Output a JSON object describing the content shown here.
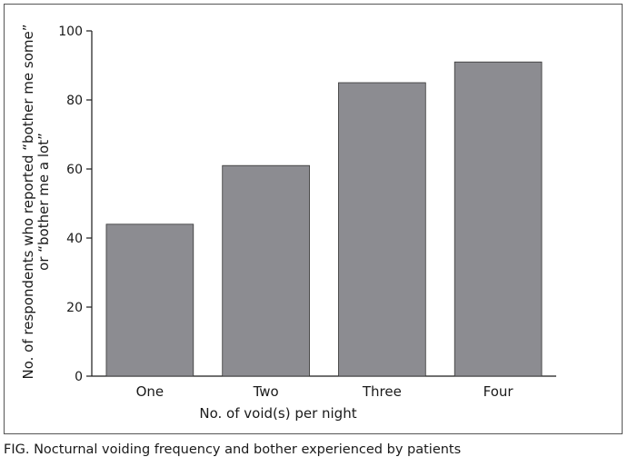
{
  "chart_data": {
    "type": "bar",
    "categories": [
      "One",
      "Two",
      "Three",
      "Four"
    ],
    "values": [
      44,
      61,
      85,
      91
    ],
    "title": "",
    "xlabel": "No. of void(s) per night",
    "ylabel_lines": [
      "No. of respondents who reported “bother me some”",
      "or “bother me a lot”"
    ],
    "ylim": [
      0,
      100
    ],
    "yticks": [
      0,
      20,
      40,
      60,
      80,
      100
    ],
    "grid": false,
    "bar_color": "#8c8c91",
    "bar_edge_color": "#333333"
  },
  "caption": "FIG.  Nocturnal voiding frequency and bother experienced by patients"
}
